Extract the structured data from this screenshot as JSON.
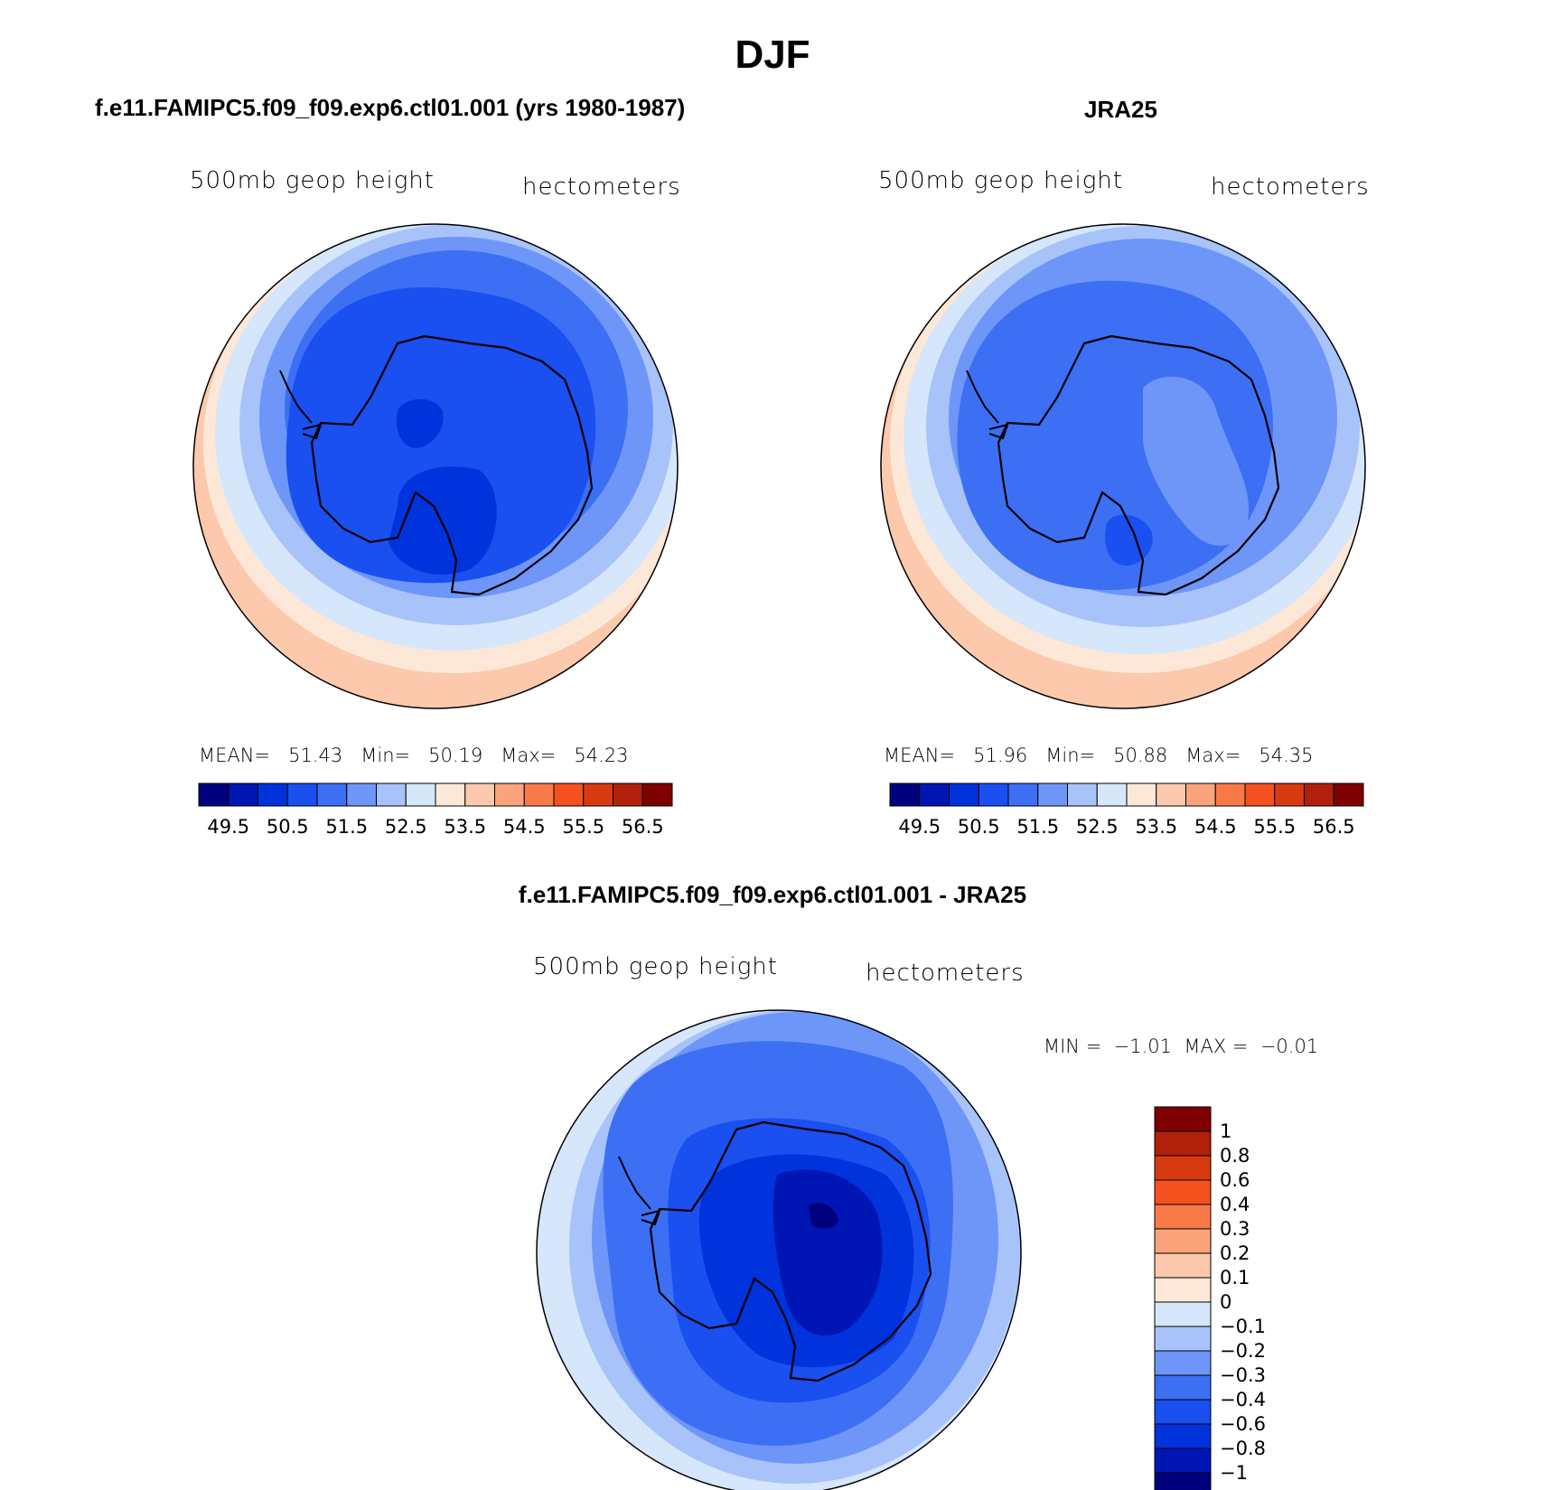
{
  "title": "DJF",
  "colors": {
    "abs_palette": [
      "#00007f",
      "#0016b4",
      "#0033dc",
      "#1a4ff0",
      "#3d6ff5",
      "#6e96f8",
      "#a8c3fa",
      "#d6e6fb",
      "#fde8d8",
      "#fcc9ad",
      "#fba47c",
      "#f97a48",
      "#f4511e",
      "#d83a10",
      "#b0200a",
      "#7f0000"
    ],
    "diff_palette": [
      "#00007f",
      "#0016b4",
      "#0033dc",
      "#1a4ff0",
      "#3d6ff5",
      "#6e96f8",
      "#a8c3fa",
      "#d6e6fb",
      "#fde8d8",
      "#fcc9ad",
      "#fba47c",
      "#f97a48",
      "#f4511e",
      "#d83a10",
      "#b0200a",
      "#7f0000"
    ]
  },
  "panels": {
    "model": {
      "title": "f.e11.FAMIPC5.f09_f09.exp6.ctl01.001 (yrs 1980-1987)",
      "variable": "500mb geop height",
      "units": "hectometers",
      "stats": {
        "mean_label": "MEAN=",
        "mean": "51.43",
        "min_label": "Min=",
        "min": "50.19",
        "max_label": "Max=",
        "max": "54.23"
      },
      "colorbar_labels": [
        "49.5",
        "50.5",
        "51.5",
        "52.5",
        "53.5",
        "54.5",
        "55.5",
        "56.5"
      ]
    },
    "obs": {
      "title": "JRA25",
      "variable": "500mb geop height",
      "units": "hectometers",
      "stats": {
        "mean_label": "MEAN=",
        "mean": "51.96",
        "min_label": "Min=",
        "min": "50.88",
        "max_label": "Max=",
        "max": "54.35"
      },
      "colorbar_labels": [
        "49.5",
        "50.5",
        "51.5",
        "52.5",
        "53.5",
        "54.5",
        "55.5",
        "56.5"
      ]
    },
    "diff": {
      "title": "f.e11.FAMIPC5.f09_f09.exp6.ctl01.001 - JRA25",
      "variable": "500mb geop height",
      "units": "hectometers",
      "minmax": "MIN =  −1.01  MAX =  −0.01",
      "colorbar_labels": [
        "1",
        "0.8",
        "0.6",
        "0.4",
        "0.3",
        "0.2",
        "0.1",
        "0",
        "−0.1",
        "−0.2",
        "−0.3",
        "−0.4",
        "−0.6",
        "−0.8",
        "−1"
      ]
    }
  }
}
